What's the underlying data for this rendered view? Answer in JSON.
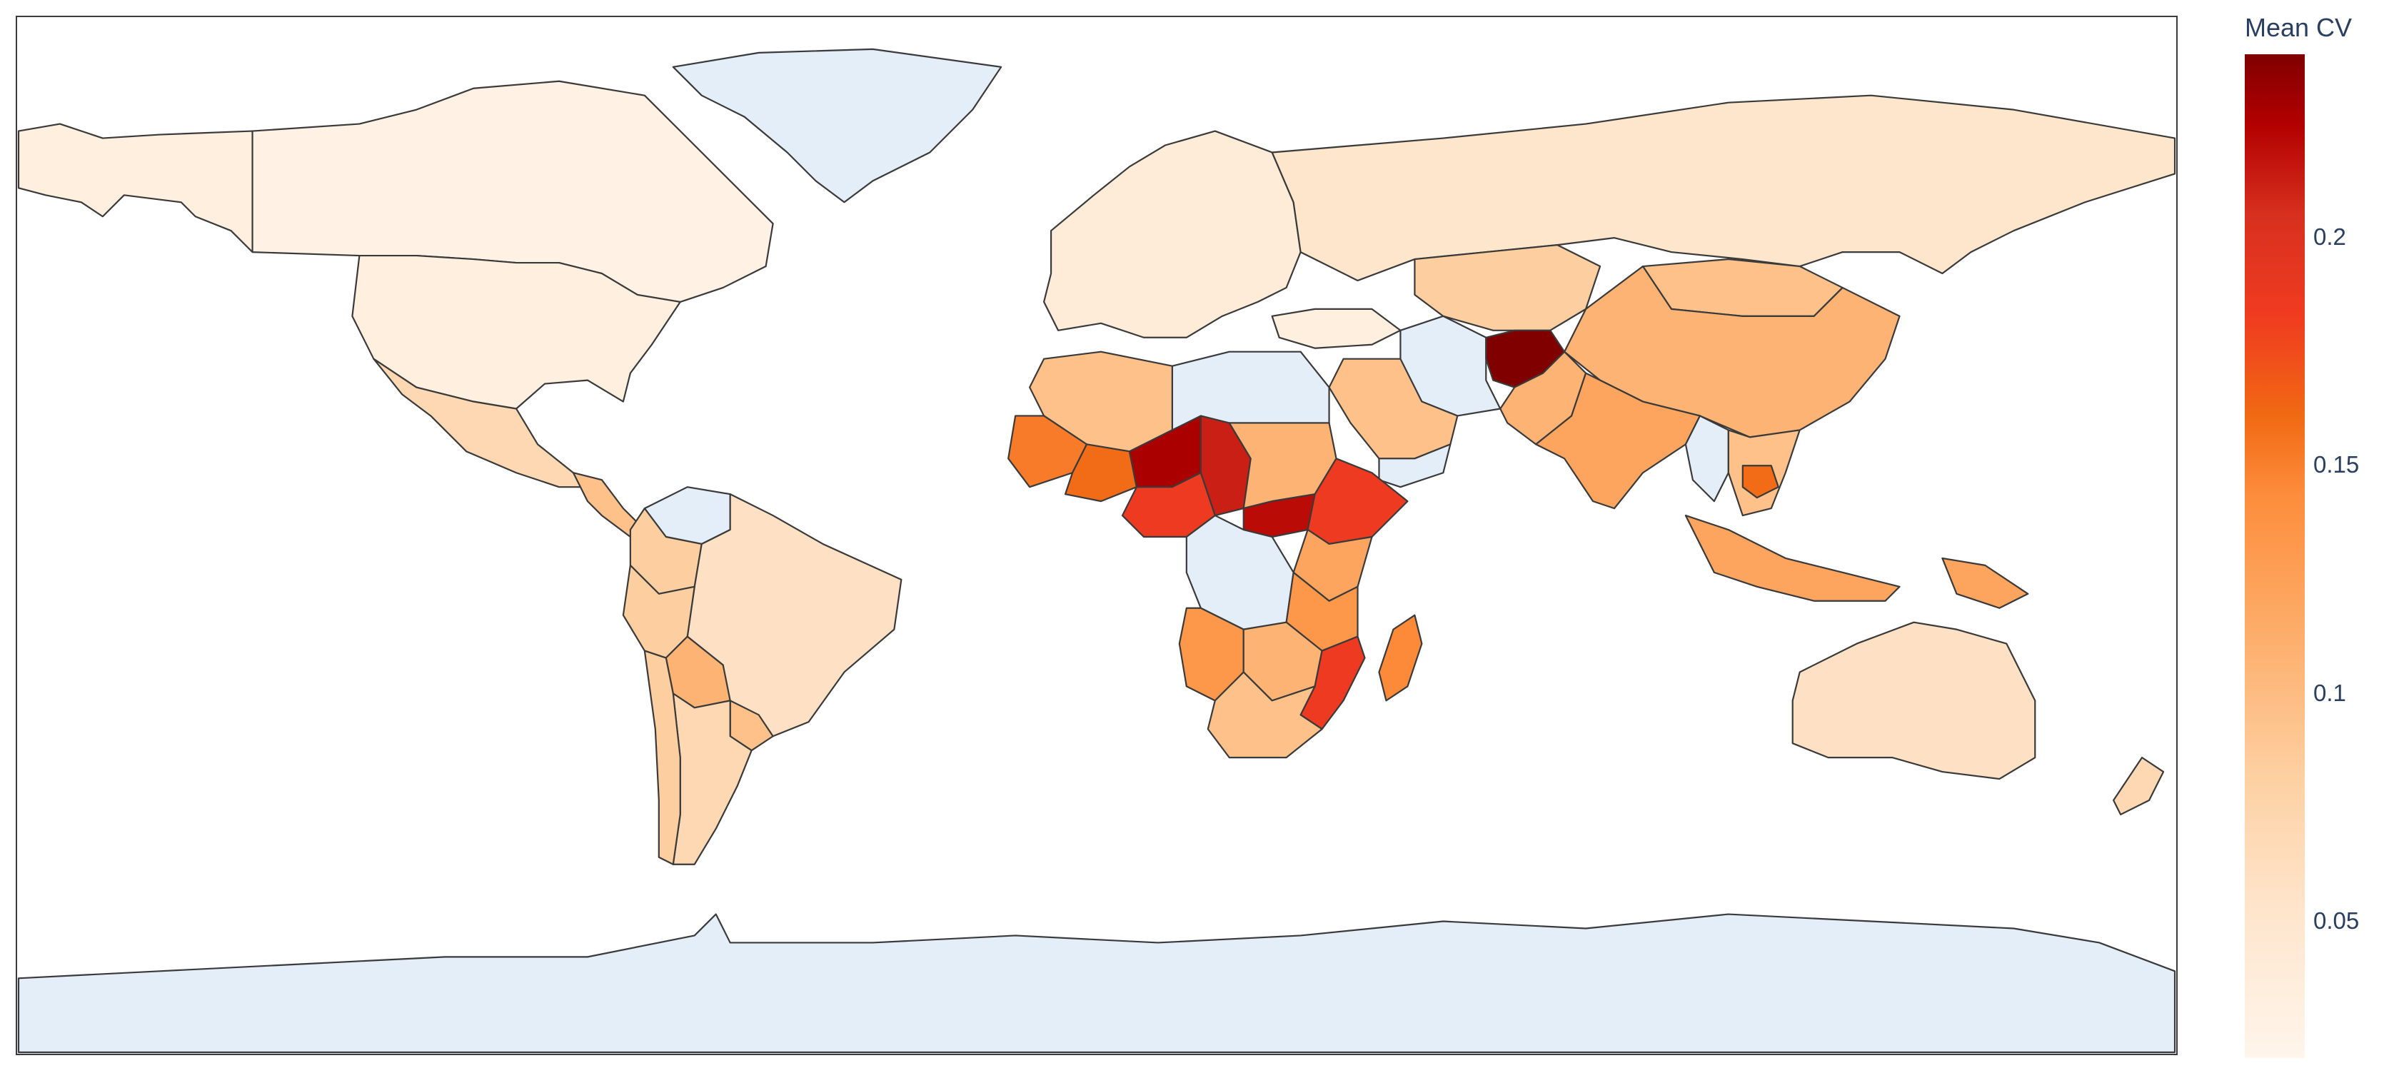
{
  "colorbar": {
    "title": "Mean CV",
    "ticks": [
      {
        "label": "0.2",
        "value": 0.2
      },
      {
        "label": "0.15",
        "value": 0.15
      },
      {
        "label": "0.1",
        "value": 0.1
      },
      {
        "label": "0.05",
        "value": 0.05
      }
    ],
    "range": [
      0.02,
      0.24
    ],
    "colorscale": [
      "#fff5eb",
      "#fee6ce",
      "#fdd0a2",
      "#fdae6b",
      "#fd8d3c",
      "#f16913",
      "#f03b20",
      "#d7301f",
      "#b30000",
      "#800000"
    ],
    "no_data_color": "#e4eef8"
  },
  "regions": [
    {
      "key": "canada",
      "value": 0.025
    },
    {
      "key": "alaska",
      "value": 0.03
    },
    {
      "key": "usa",
      "value": 0.03
    },
    {
      "key": "mexico",
      "value": 0.06
    },
    {
      "key": "central-america",
      "value": 0.08
    },
    {
      "key": "greenland",
      "value": null
    },
    {
      "key": "venezuela",
      "value": null
    },
    {
      "key": "colombia",
      "value": 0.07
    },
    {
      "key": "brazil",
      "value": 0.05
    },
    {
      "key": "peru",
      "value": 0.07
    },
    {
      "key": "bolivia",
      "value": 0.09
    },
    {
      "key": "paraguay",
      "value": 0.08
    },
    {
      "key": "argentina",
      "value": 0.06
    },
    {
      "key": "chile",
      "value": 0.07
    },
    {
      "key": "europe",
      "value": 0.035
    },
    {
      "key": "russia",
      "value": 0.045
    },
    {
      "key": "kazakhstan",
      "value": 0.07
    },
    {
      "key": "mongolia",
      "value": 0.08
    },
    {
      "key": "china",
      "value": 0.09
    },
    {
      "key": "iran",
      "value": null
    },
    {
      "key": "turkey",
      "value": 0.03
    },
    {
      "key": "afghanistan",
      "value": 0.24
    },
    {
      "key": "pakistan",
      "value": 0.09
    },
    {
      "key": "india",
      "value": 0.1
    },
    {
      "key": "myanmar",
      "value": null
    },
    {
      "key": "indochina",
      "value": 0.08
    },
    {
      "key": "cambodia",
      "value": 0.14
    },
    {
      "key": "saudi-arabia",
      "value": 0.08
    },
    {
      "key": "yemen",
      "value": null
    },
    {
      "key": "libya-egypt",
      "value": null
    },
    {
      "key": "algeria",
      "value": 0.08
    },
    {
      "key": "mauritania",
      "value": 0.13
    },
    {
      "key": "mali",
      "value": 0.14
    },
    {
      "key": "niger",
      "value": 0.22
    },
    {
      "key": "chad",
      "value": 0.2
    },
    {
      "key": "sudan",
      "value": 0.09
    },
    {
      "key": "nigeria",
      "value": 0.17
    },
    {
      "key": "south-sudan",
      "value": 0.21
    },
    {
      "key": "ethiopia",
      "value": 0.17
    },
    {
      "key": "drc",
      "value": null
    },
    {
      "key": "kenya",
      "value": 0.1
    },
    {
      "key": "tanzania",
      "value": 0.11
    },
    {
      "key": "mozambique",
      "value": 0.17
    },
    {
      "key": "angola",
      "value": 0.11
    },
    {
      "key": "zambia",
      "value": 0.09
    },
    {
      "key": "south-africa",
      "value": 0.08
    },
    {
      "key": "madagascar",
      "value": 0.12
    },
    {
      "key": "indonesia",
      "value": 0.1
    },
    {
      "key": "png",
      "value": 0.1
    },
    {
      "key": "australia",
      "value": 0.05
    },
    {
      "key": "new-zealand",
      "value": 0.06
    },
    {
      "key": "antarctica",
      "value": null
    }
  ]
}
